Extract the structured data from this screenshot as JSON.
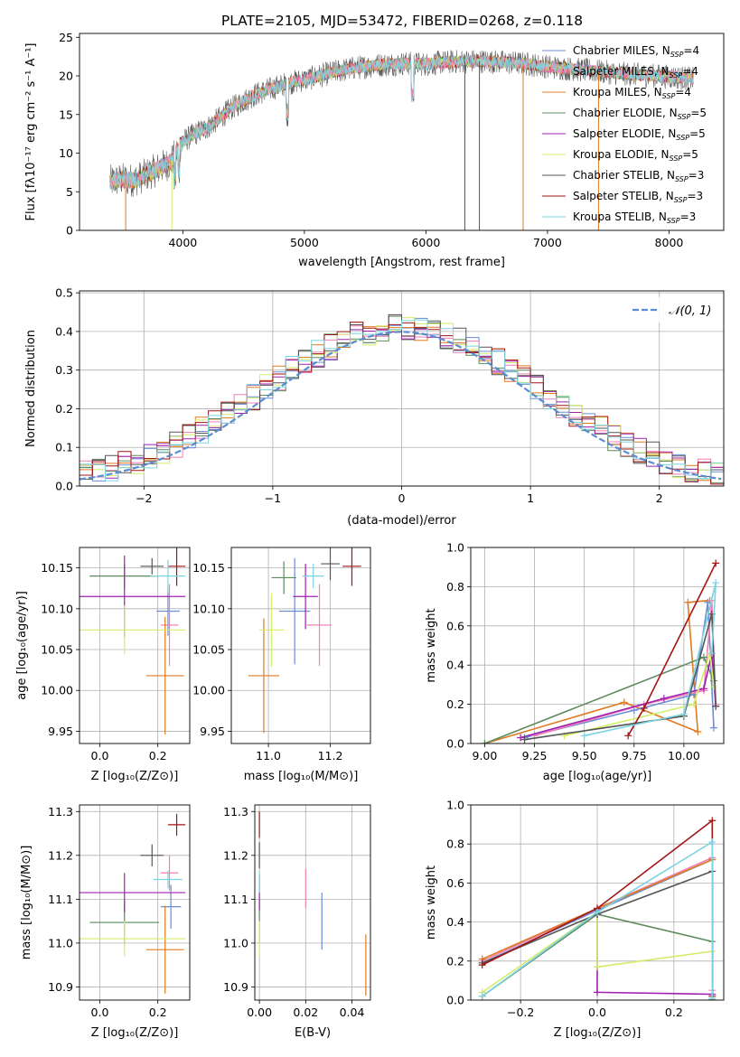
{
  "title": "PLATE=2105, MJD=53472, FIBERID=0268, z=0.118",
  "colors": {
    "chab_miles": "#6a8dd6",
    "salp_miles": "#f280b5",
    "krou_miles": "#e07b21",
    "chab_elodie": "#5e8a5e",
    "salp_elodie": "#a020b0",
    "krou_elodie": "#d4ec6a",
    "chab_stelib": "#555555",
    "salp_stelib": "#a31515",
    "krou_stelib": "#7dd3e0",
    "normal": "#5b8bd2"
  },
  "chart_data": [
    {
      "id": "spectrum",
      "type": "line",
      "xlabel": "wavelength [Angstrom, rest frame]",
      "ylabel": "Flux [fλ10⁻¹⁷ erg cm⁻² s⁻¹ A⁻¹]",
      "xlim": [
        3150,
        8450
      ],
      "ylim": [
        0,
        25.5
      ],
      "xticks": [
        4000,
        5000,
        6000,
        7000,
        8000
      ],
      "yticks": [
        0,
        5,
        10,
        15,
        20,
        25
      ],
      "legend_position": "right",
      "legend": [
        {
          "key": "chab_miles",
          "label": "Chabrier MILES, N",
          "sub": "SSP",
          "tail": "=4"
        },
        {
          "key": "salp_miles",
          "label": "Salpeter MILES, N",
          "sub": "SSP",
          "tail": "=4"
        },
        {
          "key": "krou_miles",
          "label": "Kroupa MILES, N",
          "sub": "SSP",
          "tail": "=4"
        },
        {
          "key": "chab_elodie",
          "label": "Chabrier ELODIE, N",
          "sub": "SSP",
          "tail": "=5"
        },
        {
          "key": "salp_elodie",
          "label": "Salpeter ELODIE, N",
          "sub": "SSP",
          "tail": "=5"
        },
        {
          "key": "krou_elodie",
          "label": "Kroupa ELODIE, N",
          "sub": "SSP",
          "tail": "=5"
        },
        {
          "key": "chab_stelib",
          "label": "Chabrier STELIB, N",
          "sub": "SSP",
          "tail": "=3"
        },
        {
          "key": "salp_stelib",
          "label": "Salpeter STELIB, N",
          "sub": "SSP",
          "tail": "=3"
        },
        {
          "key": "krou_stelib",
          "label": "Kroupa STELIB, N",
          "sub": "SSP",
          "tail": "=3"
        }
      ],
      "continuum": [
        [
          3400,
          6.3
        ],
        [
          3500,
          6.6
        ],
        [
          3600,
          6.5
        ],
        [
          3700,
          7.2
        ],
        [
          3800,
          8.0
        ],
        [
          3900,
          8.8
        ],
        [
          4000,
          11.5
        ],
        [
          4100,
          12.5
        ],
        [
          4200,
          13.3
        ],
        [
          4300,
          14.5
        ],
        [
          4400,
          15.8
        ],
        [
          4500,
          16.8
        ],
        [
          4600,
          17.6
        ],
        [
          4700,
          18.2
        ],
        [
          4800,
          18.7
        ],
        [
          4900,
          19.2
        ],
        [
          5000,
          19.5
        ],
        [
          5100,
          19.9
        ],
        [
          5200,
          20.3
        ],
        [
          5300,
          20.7
        ],
        [
          5400,
          21.0
        ],
        [
          5500,
          21.2
        ],
        [
          5600,
          21.4
        ],
        [
          5700,
          21.5
        ],
        [
          5800,
          21.6
        ],
        [
          5900,
          21.6
        ],
        [
          6000,
          21.5
        ],
        [
          6100,
          21.7
        ],
        [
          6200,
          21.8
        ],
        [
          6300,
          21.9
        ],
        [
          6400,
          21.9
        ],
        [
          6500,
          21.9
        ],
        [
          6600,
          21.8
        ],
        [
          6700,
          21.7
        ],
        [
          6800,
          21.6
        ],
        [
          6900,
          21.4
        ],
        [
          7000,
          21.2
        ],
        [
          7200,
          20.9
        ],
        [
          7400,
          20.6
        ],
        [
          7600,
          20.3
        ],
        [
          7800,
          20.1
        ],
        [
          8000,
          19.9
        ],
        [
          8200,
          19.6
        ]
      ],
      "drops": [
        {
          "x": 3530,
          "key": "krou_miles"
        },
        {
          "x": 3910,
          "key": "krou_elodie"
        },
        {
          "x": 6320,
          "key": "chab_stelib"
        },
        {
          "x": 6440,
          "key": "chab_stelib"
        },
        {
          "x": 6800,
          "key": "krou_miles"
        },
        {
          "x": 7420,
          "key": "krou_miles"
        }
      ]
    },
    {
      "id": "residuals",
      "type": "histogram",
      "xlabel": "(data-model)/error",
      "ylabel": "Normed distribution",
      "xlim": [
        -2.5,
        2.5
      ],
      "ylim": [
        0,
        0.505
      ],
      "xticks": [
        -2,
        -1,
        0,
        1,
        2
      ],
      "yticks": [
        0.0,
        0.1,
        0.2,
        0.3,
        0.4,
        0.5
      ],
      "bin_width": 0.1,
      "legend": {
        "label": "𝒩(0, 1)",
        "position": "top-right"
      },
      "series_keys": [
        "chab_miles",
        "salp_miles",
        "krou_miles",
        "chab_elodie",
        "salp_elodie",
        "krou_elodie",
        "chab_stelib",
        "salp_stelib",
        "krou_stelib"
      ]
    },
    {
      "id": "age_vs_Z",
      "type": "errorbar",
      "xlabel": "Z [log₁₀(Z/Z⊙)]",
      "ylabel": "age  [log₁₀(age/yr)]",
      "xlim": [
        -0.07,
        0.31
      ],
      "ylim": [
        9.935,
        10.175
      ],
      "xticks": [
        0.0,
        0.2
      ],
      "yticks": [
        9.95,
        10.0,
        10.05,
        10.1,
        10.15
      ],
      "points": [
        {
          "key": "chab_miles",
          "x": 0.235,
          "xerr": 0.04,
          "y": 10.097,
          "yerr": 0.03
        },
        {
          "key": "salp_miles",
          "x": 0.24,
          "xerr": 0.03,
          "y": 10.08,
          "yerr": 0.05
        },
        {
          "key": "krou_miles",
          "x": 0.225,
          "xerr": 0.065,
          "y": 10.018,
          "yerr": 0.072
        },
        {
          "key": "chab_elodie",
          "x": 0.085,
          "xerr": 0.12,
          "y": 10.14,
          "yerr": 0.015
        },
        {
          "key": "salp_elodie",
          "x": 0.085,
          "xerr": 0.21,
          "y": 10.115,
          "yerr": 0.05
        },
        {
          "key": "krou_elodie",
          "x": 0.085,
          "xerr": 0.21,
          "y": 10.074,
          "yerr": 0.03
        },
        {
          "key": "chab_stelib",
          "x": 0.18,
          "xerr": 0.04,
          "y": 10.152,
          "yerr": 0.01
        },
        {
          "key": "salp_stelib",
          "x": 0.265,
          "xerr": 0.03,
          "y": 10.152,
          "yerr": 0.024
        },
        {
          "key": "krou_stelib",
          "x": 0.235,
          "xerr": 0.06,
          "y": 10.14,
          "yerr": 0.02
        }
      ]
    },
    {
      "id": "age_vs_mass",
      "type": "errorbar",
      "xlabel": "mass [log₁₀(M/M⊙)]",
      "ylabel": "",
      "xlim": [
        10.88,
        11.33
      ],
      "ylim": [
        9.935,
        10.175
      ],
      "xticks": [
        11.0,
        11.2
      ],
      "yticks": [
        9.95,
        10.0,
        10.05,
        10.1,
        10.15
      ],
      "points": [
        {
          "key": "chab_miles",
          "x": 11.085,
          "xerr": 0.05,
          "y": 10.097,
          "yerr": 0.065
        },
        {
          "key": "salp_miles",
          "x": 11.165,
          "xerr": 0.04,
          "y": 10.08,
          "yerr": 0.05
        },
        {
          "key": "krou_miles",
          "x": 10.985,
          "xerr": 0.05,
          "y": 10.018,
          "yerr": 0.07
        },
        {
          "key": "chab_elodie",
          "x": 11.05,
          "xerr": 0.04,
          "y": 10.138,
          "yerr": 0.02
        },
        {
          "key": "salp_elodie",
          "x": 11.12,
          "xerr": 0.04,
          "y": 10.115,
          "yerr": 0.04
        },
        {
          "key": "krou_elodie",
          "x": 11.01,
          "xerr": 0.04,
          "y": 10.074,
          "yerr": 0.045
        },
        {
          "key": "chab_stelib",
          "x": 11.2,
          "xerr": 0.03,
          "y": 10.155,
          "yerr": 0.02
        },
        {
          "key": "salp_stelib",
          "x": 11.27,
          "xerr": 0.03,
          "y": 10.152,
          "yerr": 0.024
        },
        {
          "key": "krou_stelib",
          "x": 11.145,
          "xerr": 0.035,
          "y": 10.14,
          "yerr": 0.015
        }
      ]
    },
    {
      "id": "weight_vs_age",
      "type": "line",
      "xlabel": "age  [log₁₀(age/yr)]",
      "ylabel": "mass weight",
      "xlim": [
        8.93,
        10.2
      ],
      "ylim": [
        0,
        1.0
      ],
      "xticks": [
        9.0,
        9.25,
        9.5,
        9.75,
        10.0
      ],
      "yticks": [
        0.0,
        0.2,
        0.4,
        0.6,
        0.8,
        1.0
      ],
      "series": [
        {
          "key": "krou_miles",
          "points": [
            [
              9.0,
              0.0
            ],
            [
              9.7,
              0.21
            ],
            [
              10.07,
              0.06
            ],
            [
              10.02,
              0.72
            ],
            [
              10.13,
              0.73
            ]
          ]
        },
        {
          "key": "chab_miles",
          "points": [
            [
              9.2,
              0.03
            ],
            [
              9.75,
              0.17
            ],
            [
              10.05,
              0.25
            ],
            [
              10.12,
              0.72
            ],
            [
              10.15,
              0.08
            ]
          ]
        },
        {
          "key": "salp_miles",
          "points": [
            [
              9.25,
              0.04
            ],
            [
              9.8,
              0.2
            ],
            [
              10.1,
              0.27
            ],
            [
              10.14,
              0.73
            ],
            [
              10.16,
              0.2
            ]
          ]
        },
        {
          "key": "chab_elodie",
          "points": [
            [
              9.0,
              0.0
            ],
            [
              10.1,
              0.44
            ],
            [
              10.15,
              0.32
            ]
          ]
        },
        {
          "key": "salp_elodie",
          "points": [
            [
              9.18,
              0.03
            ],
            [
              9.9,
              0.23
            ],
            [
              10.1,
              0.28
            ],
            [
              10.14,
              0.46
            ],
            [
              10.16,
              0.19
            ]
          ]
        },
        {
          "key": "krou_elodie",
          "points": [
            [
              9.4,
              0.04
            ],
            [
              10.05,
              0.2
            ],
            [
              10.13,
              0.46
            ],
            [
              10.15,
              0.29
            ]
          ]
        },
        {
          "key": "chab_stelib",
          "points": [
            [
              9.2,
              0.02
            ],
            [
              10.0,
              0.14
            ],
            [
              10.14,
              0.66
            ],
            [
              10.16,
              0.19
            ]
          ]
        },
        {
          "key": "salp_stelib",
          "points": [
            [
              9.72,
              0.04
            ],
            [
              9.8,
              0.18
            ],
            [
              10.16,
              0.92
            ]
          ]
        },
        {
          "key": "krou_stelib",
          "points": [
            [
              9.5,
              0.04
            ],
            [
              10.0,
              0.15
            ],
            [
              10.16,
              0.82
            ],
            [
              10.14,
              0.46
            ]
          ]
        }
      ]
    },
    {
      "id": "mass_vs_Z",
      "type": "errorbar",
      "xlabel": "Z [log₁₀(Z/Z⊙)]",
      "ylabel": "mass [log₁₀(M/M⊙)]",
      "xlim": [
        -0.07,
        0.31
      ],
      "ylim": [
        10.87,
        11.315
      ],
      "xticks": [
        0.0,
        0.2
      ],
      "yticks": [
        10.9,
        11.0,
        11.1,
        11.2,
        11.3
      ],
      "points": [
        {
          "key": "chab_miles",
          "x": 0.245,
          "xerr": 0.035,
          "y": 11.083,
          "yerr": 0.05
        },
        {
          "key": "salp_miles",
          "x": 0.24,
          "xerr": 0.03,
          "y": 11.16,
          "yerr": 0.04
        },
        {
          "key": "krou_miles",
          "x": 0.225,
          "xerr": 0.065,
          "y": 10.985,
          "yerr": 0.1
        },
        {
          "key": "chab_elodie",
          "x": 0.085,
          "xerr": 0.12,
          "y": 11.047,
          "yerr": 0.05
        },
        {
          "key": "salp_elodie",
          "x": 0.085,
          "xerr": 0.21,
          "y": 11.115,
          "yerr": 0.045
        },
        {
          "key": "krou_elodie",
          "x": 0.085,
          "xerr": 0.21,
          "y": 11.01,
          "yerr": 0.04
        },
        {
          "key": "chab_stelib",
          "x": 0.18,
          "xerr": 0.04,
          "y": 11.2,
          "yerr": 0.025
        },
        {
          "key": "salp_stelib",
          "x": 0.265,
          "xerr": 0.03,
          "y": 11.27,
          "yerr": 0.025
        },
        {
          "key": "krou_stelib",
          "x": 0.235,
          "xerr": 0.05,
          "y": 11.145,
          "yerr": 0.02
        }
      ]
    },
    {
      "id": "mass_vs_ebv",
      "type": "errorbar",
      "xlabel": "E(B-V)",
      "ylabel": "",
      "xlim": [
        -0.002,
        0.048
      ],
      "ylim": [
        10.87,
        11.315
      ],
      "xticks": [
        0.0,
        0.02,
        0.04
      ],
      "yticks": [
        10.9,
        11.0,
        11.1,
        11.2,
        11.3
      ],
      "points": [
        {
          "key": "chab_miles",
          "x": 0.027,
          "xerr": 0,
          "y": 11.05,
          "yerr": 0.065
        },
        {
          "key": "salp_miles",
          "x": 0.02,
          "xerr": 0,
          "y": 11.125,
          "yerr": 0.045
        },
        {
          "key": "krou_miles",
          "x": 0.046,
          "xerr": 0,
          "y": 10.95,
          "yerr": 0.07
        },
        {
          "key": "chab_elodie",
          "x": 0.0,
          "xerr": 0,
          "y": 11.05,
          "yerr": 0.05
        },
        {
          "key": "salp_elodie",
          "x": 0.0,
          "xerr": 0,
          "y": 11.115,
          "yerr": 0.04
        },
        {
          "key": "krou_elodie",
          "x": 0.0,
          "xerr": 0,
          "y": 11.01,
          "yerr": 0.04
        },
        {
          "key": "chab_stelib",
          "x": 0.0,
          "xerr": 0,
          "y": 11.2,
          "yerr": 0.03
        },
        {
          "key": "salp_stelib",
          "x": 0.0,
          "xerr": 0,
          "y": 11.27,
          "yerr": 0.03
        },
        {
          "key": "krou_stelib",
          "x": 0.0,
          "xerr": 0,
          "y": 11.14,
          "yerr": 0.025
        }
      ]
    },
    {
      "id": "weight_vs_Z",
      "type": "line",
      "xlabel": "Z [log₁₀(Z/Z⊙)]",
      "ylabel": "mass weight",
      "xlim": [
        -0.33,
        0.33
      ],
      "ylim": [
        0,
        1.0
      ],
      "xticks": [
        -0.2,
        0.0,
        0.2
      ],
      "yticks": [
        0.0,
        0.2,
        0.4,
        0.6,
        0.8,
        1.0
      ],
      "series": [
        {
          "key": "chab_miles",
          "points": [
            [
              -0.3,
              0.19
            ],
            [
              0.0,
              0.46
            ],
            [
              0.3,
              0.72
            ],
            [
              0.3,
              0.0
            ]
          ]
        },
        {
          "key": "salp_miles",
          "points": [
            [
              -0.3,
              0.2
            ],
            [
              0.0,
              0.47
            ],
            [
              0.3,
              0.73
            ],
            [
              0.3,
              0.05
            ]
          ]
        },
        {
          "key": "krou_miles",
          "points": [
            [
              -0.3,
              0.21
            ],
            [
              0.0,
              0.47
            ],
            [
              0.3,
              0.72
            ],
            [
              0.3,
              0.0
            ]
          ]
        },
        {
          "key": "chab_elodie",
          "points": [
            [
              -0.3,
              0.02
            ],
            [
              0.0,
              0.44
            ],
            [
              0.3,
              0.3
            ],
            [
              0.3,
              0.0
            ]
          ]
        },
        {
          "key": "salp_elodie",
          "points": [
            [
              0.0,
              0.44
            ],
            [
              0.0,
              0.04
            ],
            [
              0.3,
              0.03
            ]
          ]
        },
        {
          "key": "krou_elodie",
          "points": [
            [
              -0.3,
              0.04
            ],
            [
              0.0,
              0.45
            ],
            [
              0.0,
              0.17
            ],
            [
              0.3,
              0.25
            ]
          ]
        },
        {
          "key": "chab_stelib",
          "points": [
            [
              -0.3,
              0.19
            ],
            [
              0.0,
              0.44
            ],
            [
              0.3,
              0.66
            ],
            [
              0.3,
              0.0
            ]
          ]
        },
        {
          "key": "salp_stelib",
          "points": [
            [
              -0.3,
              0.18
            ],
            [
              0.0,
              0.47
            ],
            [
              0.3,
              0.92
            ],
            [
              0.3,
              0.02
            ]
          ]
        },
        {
          "key": "krou_stelib",
          "points": [
            [
              -0.3,
              0.02
            ],
            [
              0.0,
              0.45
            ],
            [
              0.3,
              0.81
            ],
            [
              0.3,
              0.01
            ]
          ]
        }
      ]
    }
  ]
}
